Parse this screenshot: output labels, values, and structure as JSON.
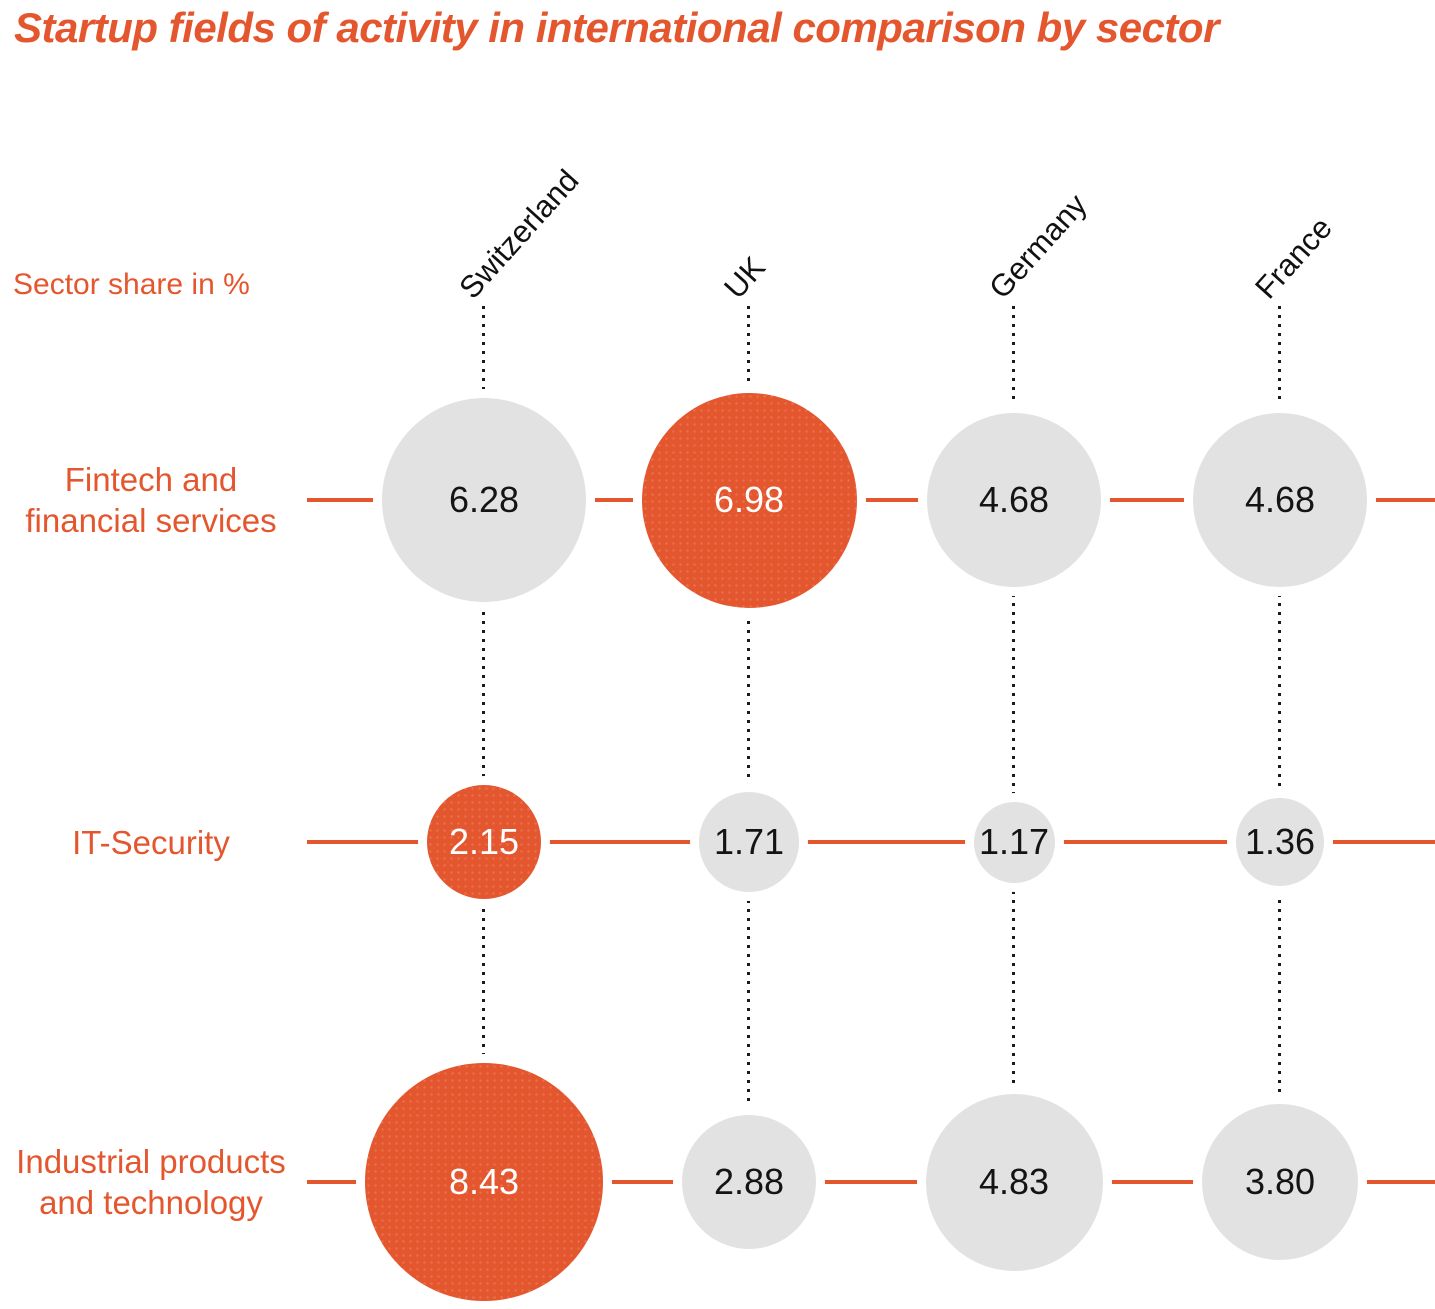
{
  "title": "Startup fields of activity in international comparison by sector",
  "axis_note": "Sector share in %",
  "colors": {
    "accent": "#E4562E",
    "bubble_gray": "#E3E2E2",
    "value_text_dark": "#141414",
    "value_text_light": "#FFFFFF",
    "column_header_text": "#111111"
  },
  "chart_data": {
    "type": "bubble",
    "title": "Startup fields of activity in international comparison by sector",
    "unit_note": "Sector share in %",
    "categories": [
      "Switzerland",
      "UK",
      "Germany",
      "France"
    ],
    "rows": [
      {
        "label": "Fintech and financial services",
        "label_lines": [
          "Fintech and",
          "financial services"
        ],
        "values": [
          6.28,
          6.98,
          4.68,
          4.68
        ],
        "display": [
          "6.28",
          "6.98",
          "4.68",
          "4.68"
        ],
        "highlight_col": 1
      },
      {
        "label": "IT-Security",
        "label_lines": [
          "IT-Security"
        ],
        "values": [
          2.15,
          1.71,
          1.17,
          1.36
        ],
        "display": [
          "2.15",
          "1.71",
          "1.17",
          "1.36"
        ],
        "highlight_col": 0
      },
      {
        "label": "Industrial products and technology",
        "label_lines": [
          "Industrial products",
          "and technology"
        ],
        "values": [
          8.43,
          2.88,
          4.83,
          3.8
        ],
        "display": [
          "8.43",
          "2.88",
          "4.83",
          "3.80"
        ],
        "highlight_col": 0
      }
    ],
    "layout_hints": {
      "bubble_size": "area grows with value",
      "highlight": "one orange bubble per row, others gray",
      "column_guides": "black dotted vertical lines",
      "row_guides": "solid orange horizontal lines",
      "legend_position": "none",
      "grid": "off"
    }
  }
}
